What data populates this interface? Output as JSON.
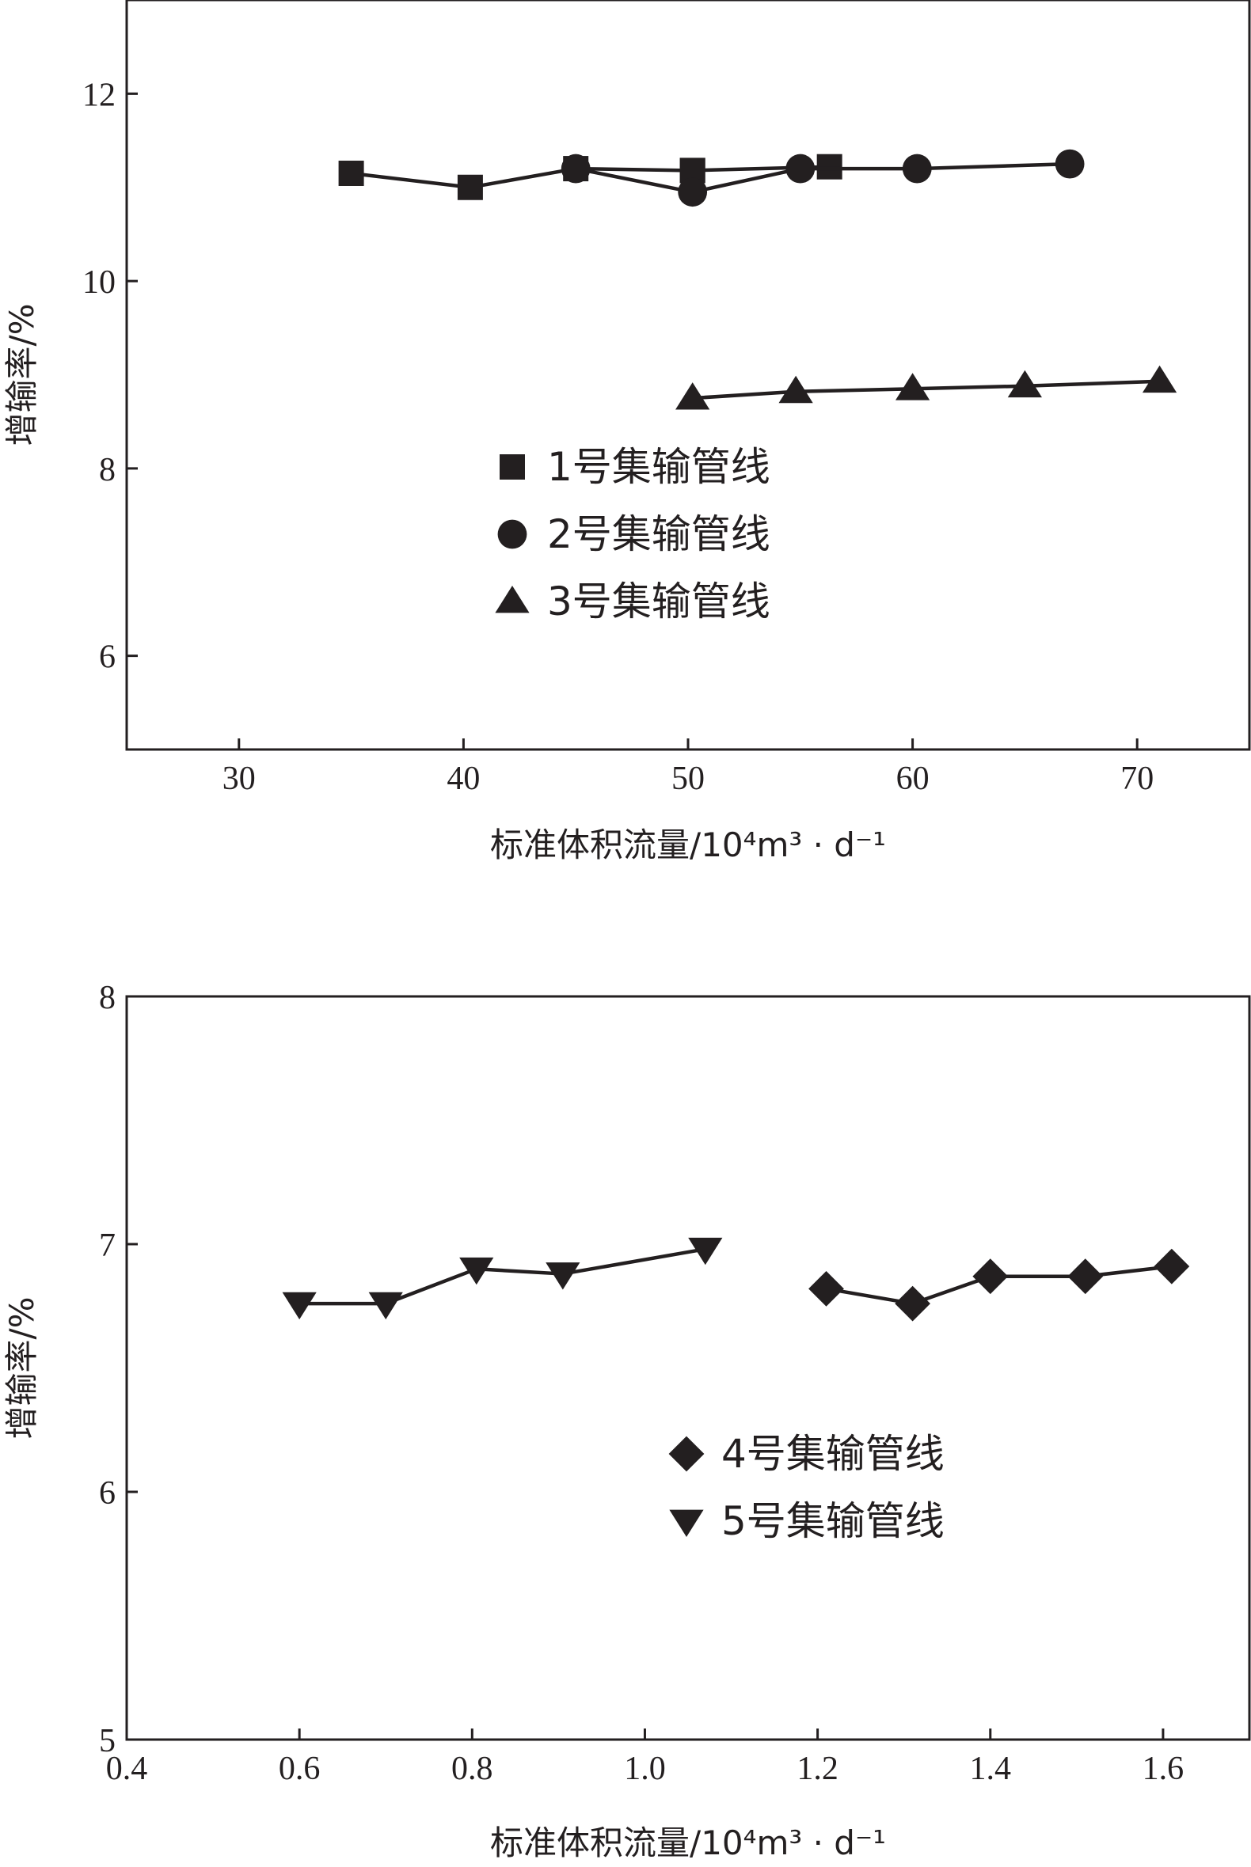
{
  "chart_data": [
    {
      "type": "line",
      "xlabel": "标准体积流量/10⁴m³ · d⁻¹",
      "ylabel": "增输率/%",
      "xlim": [
        25,
        75
      ],
      "ylim": [
        5,
        13
      ],
      "xticks": [
        "30",
        "40",
        "50",
        "60",
        "70"
      ],
      "yticks": [
        "6",
        "8",
        "10",
        "12"
      ],
      "legend_position": "center-left",
      "series": [
        {
          "name": "1号集输管线",
          "marker": "square",
          "x": [
            35,
            40.3,
            45,
            50.2,
            56.3,
            50.2
          ],
          "y": [
            11.15,
            11.0,
            11.2,
            11.18,
            11.22,
            11.18
          ]
        },
        {
          "name": "2号集输管线",
          "marker": "circle",
          "x": [
            45,
            50.2,
            55,
            60.2,
            67
          ],
          "y": [
            11.2,
            10.95,
            11.2,
            11.2,
            11.25
          ]
        },
        {
          "name": "3号集输管线",
          "marker": "triangle-up",
          "x": [
            50.2,
            54.8,
            60,
            65,
            71
          ],
          "y": [
            8.75,
            8.82,
            8.85,
            8.88,
            8.93
          ]
        }
      ]
    },
    {
      "type": "line",
      "xlabel": "标准体积流量/10⁴m³ · d⁻¹",
      "ylabel": "增输率/%",
      "xlim": [
        0.4,
        1.7
      ],
      "ylim": [
        5,
        8
      ],
      "xticks": [
        "0.4",
        "0.6",
        "0.8",
        "1.0",
        "1.2",
        "1.4",
        "1.6"
      ],
      "yticks": [
        "5",
        "6",
        "7",
        "8"
      ],
      "legend_position": "center",
      "series": [
        {
          "name": "4号集输管线",
          "marker": "diamond",
          "x": [
            1.21,
            1.31,
            1.4,
            1.51,
            1.61
          ],
          "y": [
            6.82,
            6.76,
            6.87,
            6.87,
            6.91
          ]
        },
        {
          "name": "5号集输管线",
          "marker": "triangle-down",
          "x": [
            0.6,
            0.7,
            0.805,
            0.905,
            1.07
          ],
          "y": [
            6.76,
            6.76,
            6.9,
            6.88,
            6.98
          ]
        }
      ]
    }
  ]
}
